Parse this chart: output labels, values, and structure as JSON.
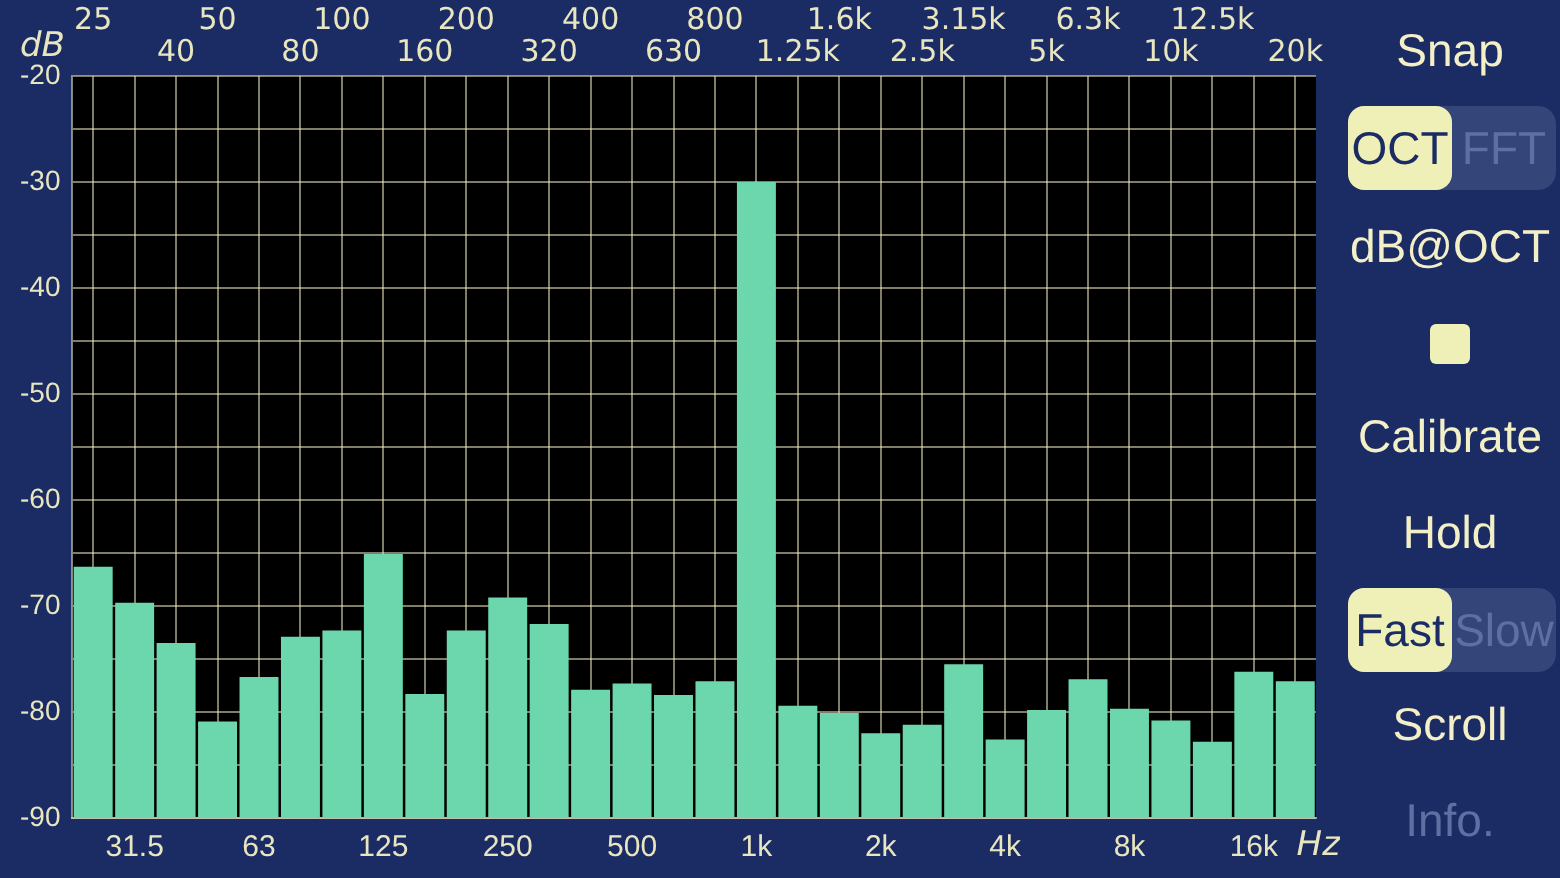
{
  "chart_data": {
    "type": "bar",
    "xlabel": "Hz",
    "ylabel": "dB",
    "categories": [
      "25",
      "31.5",
      "40",
      "50",
      "63",
      "80",
      "100",
      "125",
      "160",
      "200",
      "250",
      "320",
      "400",
      "500",
      "630",
      "800",
      "1k",
      "1.25k",
      "1.6k",
      "2k",
      "2.5k",
      "3.15k",
      "4k",
      "5k",
      "6.3k",
      "8k",
      "10k",
      "12.5k",
      "16k",
      "20k"
    ],
    "base": [
      -90,
      -90,
      -90,
      -90,
      -90,
      -90,
      -90,
      -90,
      -90,
      -90,
      -90,
      -90,
      -90,
      -90,
      -90,
      -90,
      -90,
      -90,
      -90,
      -90,
      -90,
      -90,
      -90,
      -90,
      -90,
      -90,
      -90,
      -90,
      -90,
      -90
    ],
    "values": [
      23.7,
      20.3,
      16.5,
      9.1,
      13.3,
      17.1,
      17.7,
      24.9,
      11.7,
      17.7,
      20.8,
      18.3,
      12.1,
      12.7,
      11.6,
      12.9,
      60,
      10.6,
      9.9,
      8.0,
      8.8,
      14.5,
      7.4,
      10.2,
      13.1,
      10.3,
      9.2,
      7.2,
      13.8,
      12.9
    ],
    "color": "#6cd6ac",
    "ylim": [
      -90,
      -20
    ],
    "yticks": [
      -90,
      {
        "value": -85,
        "label": null
      },
      -80,
      {
        "value": -75,
        "label": null
      },
      -70,
      {
        "value": -65,
        "label": null
      },
      -60,
      {
        "value": -55,
        "label": null
      },
      -50,
      {
        "value": -45,
        "label": null
      },
      -40,
      {
        "value": -35,
        "label": null
      },
      -30,
      {
        "value": -25,
        "label": null
      },
      -20
    ],
    "grid": true,
    "annotations": [
      "Snap",
      "OCT",
      "FFT",
      "dB@OCT",
      "Calibrate",
      "Hold",
      "Fast",
      "Slow",
      "Scroll",
      "Info."
    ]
  }
}
